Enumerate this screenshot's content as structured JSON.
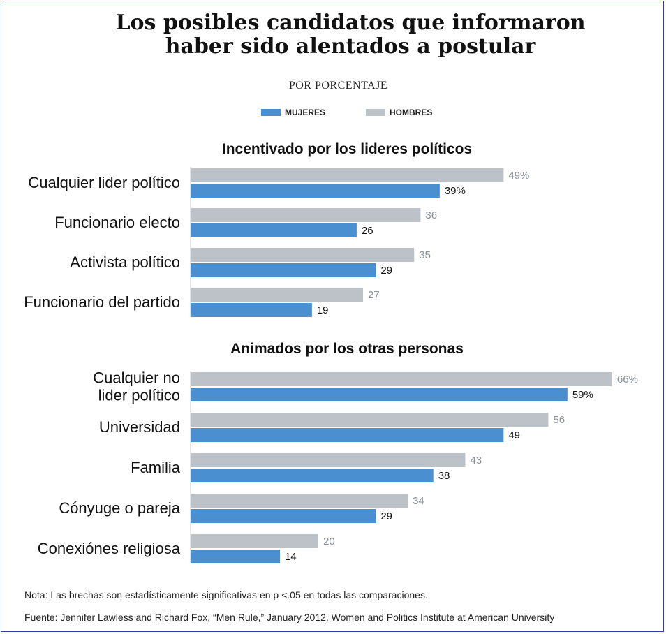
{
  "chart_data": {
    "type": "bar",
    "orientation": "horizontal",
    "title": "Los posibles candidatos que informaron haber sido alentados a postular",
    "title_lines": [
      "Los posibles candidatos que informaron",
      "haber sido alentados a postular"
    ],
    "subtitle": "POR PORCENTAJE",
    "legend": [
      {
        "label": "MUJERES",
        "color": "#4a8fd0"
      },
      {
        "label": "HOMBRES",
        "color": "#bdc2c8"
      }
    ],
    "xlim": [
      0,
      100
    ],
    "grid": false,
    "groups": [
      {
        "title": "Incentivado por los lideres políticos",
        "rows": [
          {
            "label": [
              "Cualquier lider político"
            ],
            "hombres": 49,
            "mujeres": 39,
            "hombres_label": "49%",
            "mujeres_label": "39%"
          },
          {
            "label": [
              "Funcionario electo"
            ],
            "hombres": 36,
            "mujeres": 26,
            "hombres_label": "36",
            "mujeres_label": "26"
          },
          {
            "label": [
              "Activista político"
            ],
            "hombres": 35,
            "mujeres": 29,
            "hombres_label": "35",
            "mujeres_label": "29"
          },
          {
            "label": [
              "Funcionario del partido"
            ],
            "hombres": 27,
            "mujeres": 19,
            "hombres_label": "27",
            "mujeres_label": "19"
          }
        ]
      },
      {
        "title": "Animados por los otras personas",
        "rows": [
          {
            "label": [
              "Cualquier no",
              "lider político"
            ],
            "hombres": 66,
            "mujeres": 59,
            "hombres_label": "66%",
            "mujeres_label": "59%"
          },
          {
            "label": [
              "Universidad"
            ],
            "hombres": 56,
            "mujeres": 49,
            "hombres_label": "56",
            "mujeres_label": "49"
          },
          {
            "label": [
              "Familia"
            ],
            "hombres": 43,
            "mujeres": 38,
            "hombres_label": "43",
            "mujeres_label": "38"
          },
          {
            "label": [
              "Cónyuge o pareja"
            ],
            "hombres": 34,
            "mujeres": 29,
            "hombres_label": "34",
            "mujeres_label": "29"
          },
          {
            "label": [
              "Conexiónes religiosa"
            ],
            "hombres": 20,
            "mujeres": 14,
            "hombres_label": "20",
            "mujeres_label": "14"
          }
        ]
      }
    ]
  },
  "colors": {
    "mujeres": "#4a8fd0",
    "hombres": "#bdc2c8",
    "hombres_value_text": "#8a9096",
    "mujeres_value_text": "#111111",
    "axis_line": "#c8c8c8",
    "frame": "#2b3fa8"
  },
  "notes": {
    "nota": "Nota: Las brechas son estadísticamente significativas en p <.05 en todas las comparaciones.",
    "fuente": "Fuente: Jennifer Lawless and Richard Fox, “Men Rule,” January 2012, Women and Politics Institute at American University"
  }
}
